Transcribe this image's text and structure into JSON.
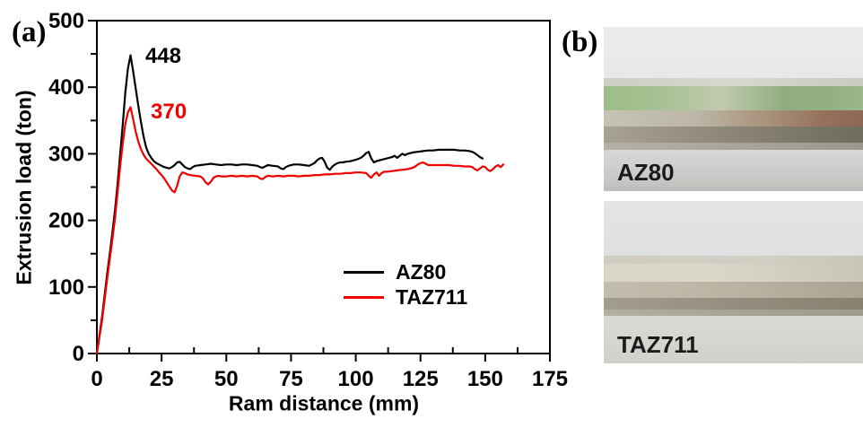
{
  "panels": {
    "a_label": "(a)",
    "b_label": "(b)"
  },
  "chart_data": {
    "type": "line",
    "xlabel": "Ram distance (mm)",
    "ylabel": "Extrusion load (ton)",
    "xlim": [
      0,
      175
    ],
    "ylim": [
      0,
      500
    ],
    "xticks": [
      0,
      25,
      50,
      75,
      100,
      125,
      150,
      175
    ],
    "yticks": [
      0,
      100,
      200,
      300,
      400,
      500
    ],
    "x_minor_step": 12.5,
    "y_minor_step": 50,
    "grid": false,
    "frame": "full-box",
    "legend_position": "inside-lower-right",
    "annotations": [
      {
        "text": "448",
        "color": "#000000",
        "x": 18.7,
        "y": 446
      },
      {
        "text": "370",
        "color": "#f20000",
        "x": 20.8,
        "y": 362
      }
    ],
    "series": [
      {
        "name": "AZ80",
        "color": "#000000",
        "peak_label": "448",
        "points": [
          [
            0,
            0
          ],
          [
            2,
            55
          ],
          [
            4,
            120
          ],
          [
            5,
            150
          ],
          [
            6,
            182
          ],
          [
            7,
            215
          ],
          [
            8,
            255
          ],
          [
            9,
            300
          ],
          [
            10,
            345
          ],
          [
            11,
            392
          ],
          [
            12,
            428
          ],
          [
            13,
            448
          ],
          [
            14,
            424
          ],
          [
            15,
            398
          ],
          [
            16,
            372
          ],
          [
            17,
            348
          ],
          [
            18,
            327
          ],
          [
            19,
            310
          ],
          [
            20,
            300
          ],
          [
            21,
            294
          ],
          [
            22,
            289
          ],
          [
            23,
            286
          ],
          [
            24,
            284
          ],
          [
            25,
            282
          ],
          [
            26,
            280
          ],
          [
            27,
            279
          ],
          [
            28,
            278
          ],
          [
            29,
            280
          ],
          [
            30,
            283
          ],
          [
            31,
            287
          ],
          [
            32,
            288
          ],
          [
            33,
            284
          ],
          [
            34,
            280
          ],
          [
            35,
            278
          ],
          [
            36,
            277
          ],
          [
            37,
            280
          ],
          [
            38,
            282
          ],
          [
            40,
            283
          ],
          [
            42,
            284
          ],
          [
            44,
            285
          ],
          [
            46,
            284
          ],
          [
            48,
            283
          ],
          [
            50,
            284
          ],
          [
            52,
            284
          ],
          [
            54,
            283
          ],
          [
            56,
            284
          ],
          [
            58,
            284
          ],
          [
            60,
            283
          ],
          [
            62,
            282
          ],
          [
            63,
            280
          ],
          [
            64,
            279
          ],
          [
            65,
            281
          ],
          [
            66,
            283
          ],
          [
            68,
            282
          ],
          [
            70,
            281
          ],
          [
            71,
            278
          ],
          [
            72,
            277
          ],
          [
            73,
            280
          ],
          [
            74,
            282
          ],
          [
            76,
            284
          ],
          [
            78,
            284
          ],
          [
            80,
            283
          ],
          [
            82,
            282
          ],
          [
            84,
            286
          ],
          [
            85,
            290
          ],
          [
            86,
            293
          ],
          [
            87,
            294
          ],
          [
            88,
            288
          ],
          [
            89,
            279
          ],
          [
            90,
            276
          ],
          [
            91,
            281
          ],
          [
            92,
            284
          ],
          [
            93,
            286
          ],
          [
            94,
            287
          ],
          [
            95,
            287
          ],
          [
            96,
            288
          ],
          [
            98,
            289
          ],
          [
            100,
            291
          ],
          [
            102,
            294
          ],
          [
            103,
            297
          ],
          [
            104,
            301
          ],
          [
            105,
            303
          ],
          [
            106,
            293
          ],
          [
            107,
            287
          ],
          [
            108,
            289
          ],
          [
            110,
            291
          ],
          [
            112,
            293
          ],
          [
            114,
            295
          ],
          [
            115,
            297
          ],
          [
            116,
            294
          ],
          [
            117,
            297
          ],
          [
            118,
            300
          ],
          [
            119,
            298
          ],
          [
            120,
            300
          ],
          [
            122,
            302
          ],
          [
            124,
            303
          ],
          [
            126,
            304
          ],
          [
            128,
            305
          ],
          [
            130,
            305
          ],
          [
            132,
            306
          ],
          [
            134,
            306
          ],
          [
            136,
            306
          ],
          [
            138,
            306
          ],
          [
            140,
            305
          ],
          [
            142,
            305
          ],
          [
            144,
            304
          ],
          [
            145,
            303
          ],
          [
            146,
            301
          ],
          [
            147,
            298
          ],
          [
            148,
            295
          ],
          [
            149,
            293
          ]
        ]
      },
      {
        "name": "TAZ711",
        "color": "#f20000",
        "peak_label": "370",
        "points": [
          [
            0,
            0
          ],
          [
            2,
            50
          ],
          [
            4,
            112
          ],
          [
            5,
            142
          ],
          [
            6,
            172
          ],
          [
            7,
            203
          ],
          [
            8,
            242
          ],
          [
            9,
            282
          ],
          [
            10,
            316
          ],
          [
            11,
            345
          ],
          [
            12,
            362
          ],
          [
            13,
            370
          ],
          [
            14,
            352
          ],
          [
            15,
            333
          ],
          [
            16,
            318
          ],
          [
            17,
            307
          ],
          [
            18,
            299
          ],
          [
            19,
            293
          ],
          [
            20,
            289
          ],
          [
            21,
            285
          ],
          [
            22,
            281
          ],
          [
            23,
            277
          ],
          [
            24,
            272
          ],
          [
            25,
            268
          ],
          [
            26,
            263
          ],
          [
            27,
            257
          ],
          [
            28,
            251
          ],
          [
            29,
            245
          ],
          [
            30,
            242
          ],
          [
            31,
            252
          ],
          [
            32,
            266
          ],
          [
            33,
            272
          ],
          [
            34,
            271
          ],
          [
            35,
            269
          ],
          [
            36,
            268
          ],
          [
            38,
            267
          ],
          [
            40,
            266
          ],
          [
            41,
            263
          ],
          [
            42,
            257
          ],
          [
            43,
            254
          ],
          [
            44,
            258
          ],
          [
            45,
            264
          ],
          [
            46,
            266
          ],
          [
            47,
            267
          ],
          [
            48,
            266
          ],
          [
            50,
            266
          ],
          [
            52,
            267
          ],
          [
            54,
            266
          ],
          [
            56,
            267
          ],
          [
            58,
            266
          ],
          [
            60,
            267
          ],
          [
            62,
            266
          ],
          [
            63,
            263
          ],
          [
            64,
            262
          ],
          [
            65,
            265
          ],
          [
            66,
            267
          ],
          [
            68,
            266
          ],
          [
            70,
            267
          ],
          [
            72,
            266
          ],
          [
            74,
            267
          ],
          [
            76,
            267
          ],
          [
            78,
            266
          ],
          [
            80,
            267
          ],
          [
            82,
            267
          ],
          [
            84,
            268
          ],
          [
            86,
            268
          ],
          [
            88,
            269
          ],
          [
            90,
            269
          ],
          [
            92,
            270
          ],
          [
            94,
            270
          ],
          [
            96,
            271
          ],
          [
            98,
            271
          ],
          [
            100,
            272
          ],
          [
            102,
            272
          ],
          [
            104,
            271
          ],
          [
            105,
            267
          ],
          [
            106,
            264
          ],
          [
            107,
            269
          ],
          [
            108,
            272
          ],
          [
            109,
            267
          ],
          [
            110,
            271
          ],
          [
            111,
            273
          ],
          [
            112,
            273
          ],
          [
            114,
            274
          ],
          [
            116,
            275
          ],
          [
            118,
            276
          ],
          [
            120,
            277
          ],
          [
            122,
            279
          ],
          [
            123,
            281
          ],
          [
            124,
            284
          ],
          [
            125,
            286
          ],
          [
            126,
            287
          ],
          [
            127,
            285
          ],
          [
            128,
            283
          ],
          [
            130,
            283
          ],
          [
            132,
            283
          ],
          [
            134,
            283
          ],
          [
            136,
            283
          ],
          [
            138,
            282
          ],
          [
            140,
            282
          ],
          [
            142,
            281
          ],
          [
            144,
            281
          ],
          [
            145,
            280
          ],
          [
            146,
            277
          ],
          [
            147,
            275
          ],
          [
            148,
            278
          ],
          [
            149,
            281
          ],
          [
            150,
            280
          ],
          [
            151,
            276
          ],
          [
            152,
            274
          ],
          [
            153,
            277
          ],
          [
            154,
            281
          ],
          [
            155,
            283
          ],
          [
            156,
            280
          ],
          [
            157,
            284
          ]
        ]
      }
    ]
  },
  "photos": [
    {
      "label": "AZ80"
    },
    {
      "label": "TAZ711"
    }
  ]
}
